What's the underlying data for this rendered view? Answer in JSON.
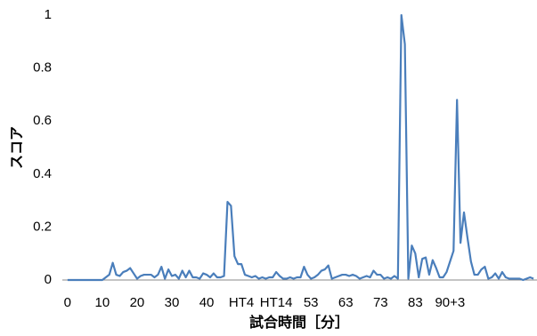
{
  "chart_data": {
    "type": "line",
    "x_label": "試合時間［分］",
    "y_label": "スコア",
    "x": [
      0,
      1,
      2,
      3,
      4,
      5,
      6,
      7,
      8,
      9,
      10,
      11,
      12,
      13,
      14,
      15,
      16,
      17,
      18,
      19,
      20,
      21,
      22,
      23,
      24,
      25,
      26,
      27,
      28,
      29,
      30,
      31,
      32,
      33,
      34,
      35,
      36,
      37,
      38,
      39,
      40,
      41,
      42,
      43,
      44,
      45,
      46,
      47,
      48,
      49,
      50,
      51,
      52,
      53,
      54,
      55,
      56,
      57,
      58,
      59,
      60,
      61,
      62,
      63,
      64,
      65,
      66,
      67,
      68,
      69,
      70,
      71,
      72,
      73,
      74,
      75,
      76,
      77,
      78,
      79,
      80,
      81,
      82,
      83,
      84,
      85,
      86,
      87,
      88,
      89,
      90,
      91,
      92,
      93,
      94,
      95,
      96,
      97,
      98,
      99,
      100,
      101,
      102,
      103,
      104,
      105,
      106,
      107,
      108,
      109,
      110,
      111,
      112,
      113,
      114,
      115,
      116,
      117,
      118,
      119,
      120,
      121,
      122,
      123,
      124,
      125,
      126,
      127,
      128,
      129,
      130,
      131,
      132,
      133,
      134
    ],
    "series": [
      {
        "name": "スコア",
        "color": "#4a7ebb",
        "values": [
          0,
          0,
          0,
          0,
          0,
          0,
          0,
          0,
          0,
          0,
          0,
          0.01,
          0.02,
          0.065,
          0.02,
          0.015,
          0.03,
          0.035,
          0.045,
          0.025,
          0.005,
          0.015,
          0.02,
          0.02,
          0.02,
          0.01,
          0.02,
          0.05,
          0.005,
          0.04,
          0.015,
          0.02,
          0.005,
          0.035,
          0.01,
          0.035,
          0.01,
          0.01,
          0.005,
          0.025,
          0.02,
          0.01,
          0.025,
          0.01,
          0.01,
          0.015,
          0.295,
          0.28,
          0.09,
          0.06,
          0.06,
          0.02,
          0.015,
          0.01,
          0.015,
          0.005,
          0.01,
          0.005,
          0.01,
          0.01,
          0.03,
          0.015,
          0.005,
          0.005,
          0.01,
          0.005,
          0.01,
          0.01,
          0.05,
          0.02,
          0.005,
          0.01,
          0.02,
          0.035,
          0.04,
          0.055,
          0.005,
          0.01,
          0.015,
          0.02,
          0.02,
          0.015,
          0.02,
          0.015,
          0.005,
          0.01,
          0.015,
          0.01,
          0.035,
          0.02,
          0.02,
          0.005,
          0.01,
          0.005,
          0.015,
          0.005,
          1.0,
          0.89,
          0.005,
          0.13,
          0.1,
          0.01,
          0.08,
          0.085,
          0.02,
          0.075,
          0.045,
          0.01,
          0.01,
          0.03,
          0.07,
          0.11,
          0.68,
          0.14,
          0.255,
          0.16,
          0.07,
          0.02,
          0.02,
          0.04,
          0.05,
          0.005,
          0.01,
          0.025,
          0.005,
          0.03,
          0.01,
          0.005,
          0.005,
          0.005,
          0.005,
          0,
          0.005,
          0.01,
          0.005
        ]
      }
    ],
    "xlim": [
      -1.5,
      135
    ],
    "xticks": [
      0,
      10,
      20,
      30,
      40,
      {
        "value": 50,
        "label": "HT4"
      },
      {
        "value": 60,
        "label": "HT14"
      },
      {
        "value": 70,
        "label": "53"
      },
      {
        "value": 80,
        "label": "63"
      },
      {
        "value": 90,
        "label": "73"
      },
      {
        "value": 100,
        "label": "83"
      },
      {
        "value": 110,
        "label": "90+3"
      }
    ],
    "ylim": [
      0,
      1
    ],
    "yticks": [
      0,
      0.2,
      0.4,
      0.6,
      0.8,
      1
    ],
    "grid": false
  }
}
